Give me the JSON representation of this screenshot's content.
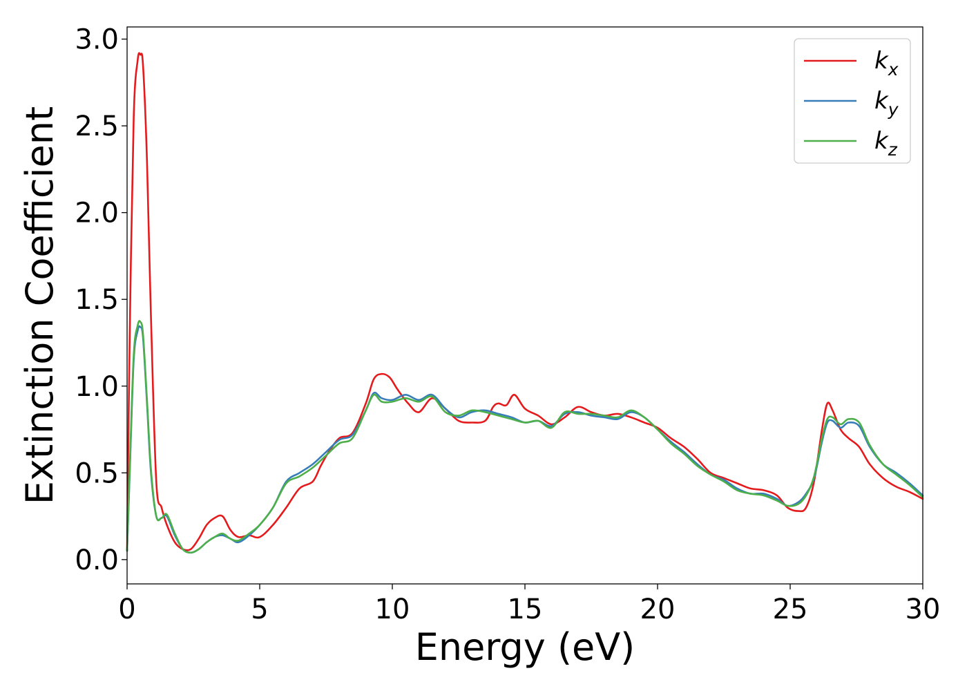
{
  "chart_data": {
    "type": "line",
    "title": "",
    "xlabel": "Energy (eV)",
    "ylabel": "Extinction Coefficient",
    "xlim": [
      0,
      30
    ],
    "ylim": [
      -0.14,
      3.07
    ],
    "xticks": [
      0,
      5,
      10,
      15,
      20,
      25,
      30
    ],
    "yticks": [
      0.0,
      0.5,
      1.0,
      1.5,
      2.0,
      2.5,
      3.0
    ],
    "xtick_labels": [
      "0",
      "5",
      "10",
      "15",
      "20",
      "25",
      "30"
    ],
    "ytick_labels": [
      "0.0",
      "0.5",
      "1.0",
      "1.5",
      "2.0",
      "2.5",
      "3.0"
    ],
    "grid": false,
    "legend_position": "top-right",
    "series": [
      {
        "name": "k_x",
        "label_base": "k",
        "label_sub": "x",
        "color": "#e41a1c",
        "x": [
          0,
          0.1,
          0.25,
          0.4,
          0.5,
          0.6,
          0.75,
          0.9,
          1.1,
          1.3,
          1.5,
          1.8,
          2.1,
          2.4,
          2.7,
          3.0,
          3.3,
          3.6,
          3.9,
          4.2,
          4.6,
          5.0,
          5.5,
          6.0,
          6.5,
          7.0,
          7.3,
          7.6,
          8.0,
          8.5,
          9.0,
          9.3,
          9.6,
          9.9,
          10.2,
          10.6,
          11.0,
          11.5,
          12.0,
          12.5,
          13.0,
          13.5,
          13.8,
          14.0,
          14.3,
          14.6,
          15.0,
          15.5,
          16.0,
          16.5,
          17.0,
          17.5,
          18.0,
          18.5,
          19.0,
          19.5,
          20.0,
          20.5,
          21.0,
          21.5,
          22.0,
          22.5,
          23.0,
          23.5,
          24.0,
          24.5,
          24.9,
          25.3,
          25.6,
          25.9,
          26.2,
          26.4,
          26.6,
          26.9,
          27.2,
          27.6,
          28.0,
          28.5,
          29.0,
          29.5,
          30.0
        ],
        "y": [
          0.05,
          1.3,
          2.55,
          2.88,
          2.91,
          2.85,
          2.3,
          1.4,
          0.45,
          0.3,
          0.2,
          0.1,
          0.06,
          0.06,
          0.12,
          0.2,
          0.24,
          0.25,
          0.17,
          0.13,
          0.14,
          0.13,
          0.2,
          0.3,
          0.41,
          0.45,
          0.54,
          0.62,
          0.7,
          0.73,
          0.9,
          1.04,
          1.07,
          1.05,
          0.98,
          0.9,
          0.85,
          0.93,
          0.87,
          0.8,
          0.79,
          0.8,
          0.88,
          0.9,
          0.89,
          0.95,
          0.87,
          0.83,
          0.78,
          0.82,
          0.88,
          0.85,
          0.83,
          0.84,
          0.82,
          0.79,
          0.76,
          0.7,
          0.65,
          0.58,
          0.5,
          0.47,
          0.44,
          0.41,
          0.4,
          0.37,
          0.3,
          0.28,
          0.3,
          0.45,
          0.75,
          0.9,
          0.86,
          0.75,
          0.7,
          0.65,
          0.55,
          0.47,
          0.42,
          0.39,
          0.35
        ]
      },
      {
        "name": "k_y",
        "label_base": "k",
        "label_sub": "y",
        "color": "#377eb8",
        "x": [
          0,
          0.1,
          0.25,
          0.4,
          0.5,
          0.6,
          0.75,
          0.9,
          1.1,
          1.3,
          1.5,
          1.8,
          2.1,
          2.4,
          2.7,
          3.0,
          3.3,
          3.6,
          3.9,
          4.2,
          4.6,
          5.0,
          5.5,
          6.0,
          6.5,
          7.0,
          7.5,
          8.0,
          8.5,
          9.0,
          9.3,
          9.6,
          10.0,
          10.5,
          11.0,
          11.5,
          12.0,
          12.5,
          13.0,
          13.5,
          14.0,
          14.5,
          15.0,
          15.5,
          16.0,
          16.5,
          17.0,
          17.5,
          18.0,
          18.5,
          19.0,
          19.5,
          20.0,
          20.5,
          21.0,
          21.5,
          22.0,
          22.5,
          23.0,
          23.5,
          24.0,
          24.5,
          24.9,
          25.3,
          25.6,
          25.9,
          26.2,
          26.4,
          26.6,
          26.9,
          27.2,
          27.6,
          28.0,
          28.5,
          29.0,
          29.5,
          30.0
        ],
        "y": [
          0.05,
          0.5,
          1.15,
          1.32,
          1.34,
          1.28,
          0.9,
          0.5,
          0.25,
          0.24,
          0.25,
          0.14,
          0.06,
          0.04,
          0.06,
          0.1,
          0.13,
          0.14,
          0.12,
          0.1,
          0.14,
          0.2,
          0.3,
          0.45,
          0.5,
          0.55,
          0.62,
          0.69,
          0.72,
          0.86,
          0.96,
          0.93,
          0.92,
          0.95,
          0.92,
          0.95,
          0.87,
          0.82,
          0.85,
          0.86,
          0.84,
          0.82,
          0.79,
          0.8,
          0.77,
          0.84,
          0.85,
          0.83,
          0.82,
          0.81,
          0.85,
          0.82,
          0.75,
          0.68,
          0.62,
          0.55,
          0.49,
          0.46,
          0.41,
          0.38,
          0.38,
          0.35,
          0.31,
          0.33,
          0.38,
          0.47,
          0.68,
          0.79,
          0.8,
          0.76,
          0.79,
          0.77,
          0.65,
          0.55,
          0.5,
          0.44,
          0.37
        ]
      },
      {
        "name": "k_z",
        "label_base": "k",
        "label_sub": "z",
        "color": "#4daf4a",
        "x": [
          0,
          0.1,
          0.25,
          0.4,
          0.5,
          0.6,
          0.75,
          0.9,
          1.1,
          1.3,
          1.5,
          1.8,
          2.1,
          2.4,
          2.7,
          3.0,
          3.3,
          3.6,
          3.9,
          4.2,
          4.6,
          5.0,
          5.5,
          6.0,
          6.5,
          7.0,
          7.5,
          8.0,
          8.5,
          9.0,
          9.3,
          9.6,
          10.0,
          10.5,
          11.0,
          11.5,
          12.0,
          12.5,
          13.0,
          13.5,
          14.0,
          14.5,
          15.0,
          15.5,
          16.0,
          16.5,
          17.0,
          17.5,
          18.0,
          18.5,
          19.0,
          19.5,
          20.0,
          20.5,
          21.0,
          21.5,
          22.0,
          22.5,
          23.0,
          23.5,
          24.0,
          24.5,
          24.9,
          25.3,
          25.6,
          25.9,
          26.2,
          26.4,
          26.6,
          26.9,
          27.2,
          27.6,
          28.0,
          28.5,
          29.0,
          29.5,
          30.0
        ],
        "y": [
          0.05,
          0.52,
          1.18,
          1.35,
          1.37,
          1.3,
          0.92,
          0.52,
          0.25,
          0.24,
          0.26,
          0.15,
          0.06,
          0.04,
          0.06,
          0.1,
          0.13,
          0.15,
          0.12,
          0.11,
          0.15,
          0.2,
          0.3,
          0.44,
          0.48,
          0.53,
          0.6,
          0.67,
          0.7,
          0.86,
          0.95,
          0.91,
          0.91,
          0.93,
          0.91,
          0.94,
          0.85,
          0.83,
          0.86,
          0.85,
          0.83,
          0.81,
          0.79,
          0.8,
          0.76,
          0.85,
          0.84,
          0.84,
          0.83,
          0.82,
          0.86,
          0.82,
          0.75,
          0.67,
          0.61,
          0.54,
          0.49,
          0.45,
          0.4,
          0.38,
          0.37,
          0.34,
          0.31,
          0.32,
          0.37,
          0.48,
          0.7,
          0.81,
          0.82,
          0.78,
          0.81,
          0.79,
          0.66,
          0.55,
          0.49,
          0.43,
          0.36
        ]
      }
    ]
  }
}
